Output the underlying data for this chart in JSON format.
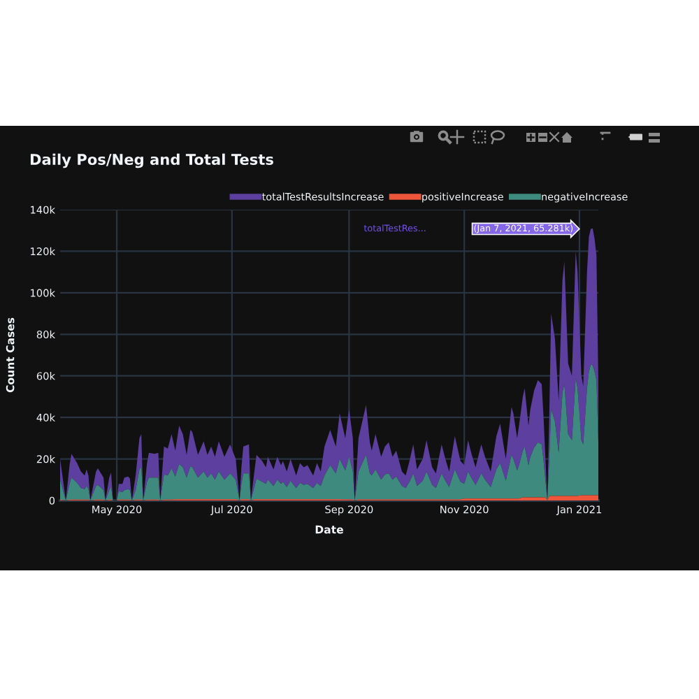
{
  "chart_data": {
    "type": "area",
    "stacked": true,
    "title": "Daily Pos/Neg and Total Tests",
    "xlabel": "Date",
    "ylabel": "Count Cases",
    "x": [
      "2020-04-01",
      "2020-04-04",
      "2020-04-06",
      "2020-04-07",
      "2020-04-10",
      "2020-04-12",
      "2020-04-14",
      "2020-04-15",
      "2020-04-16",
      "2020-04-17",
      "2020-04-20",
      "2020-04-21",
      "2020-04-24",
      "2020-04-25",
      "2020-04-27",
      "2020-04-28",
      "2020-04-29",
      "2020-05-01",
      "2020-05-02",
      "2020-05-04",
      "2020-05-05",
      "2020-05-07",
      "2020-05-08",
      "2020-05-09",
      "2020-05-11",
      "2020-05-13",
      "2020-05-14",
      "2020-05-15",
      "2020-05-17",
      "2020-05-18",
      "2020-05-21",
      "2020-05-23",
      "2020-05-24",
      "2020-05-26",
      "2020-05-28",
      "2020-05-30",
      "2020-06-01",
      "2020-06-03",
      "2020-06-05",
      "2020-06-07",
      "2020-06-09",
      "2020-06-10",
      "2020-06-13",
      "2020-06-16",
      "2020-06-18",
      "2020-06-20",
      "2020-06-22",
      "2020-06-24",
      "2020-06-27",
      "2020-06-30",
      "2020-07-03",
      "2020-07-05",
      "2020-07-06",
      "2020-07-07",
      "2020-07-10",
      "2020-07-11",
      "2020-07-13",
      "2020-07-14",
      "2020-07-17",
      "2020-07-19",
      "2020-07-20",
      "2020-07-23",
      "2020-07-25",
      "2020-07-27",
      "2020-07-28",
      "2020-07-30",
      "2020-08-01",
      "2020-08-04",
      "2020-08-06",
      "2020-08-08",
      "2020-08-10",
      "2020-08-13",
      "2020-08-15",
      "2020-08-17",
      "2020-08-19",
      "2020-08-22",
      "2020-08-25",
      "2020-08-27",
      "2020-08-30",
      "2020-09-01",
      "2020-09-03",
      "2020-09-04",
      "2020-09-06",
      "2020-09-10",
      "2020-09-12",
      "2020-09-13",
      "2020-09-15",
      "2020-09-18",
      "2020-09-20",
      "2020-09-22",
      "2020-09-24",
      "2020-09-26",
      "2020-09-29",
      "2020-10-01",
      "2020-10-03",
      "2020-10-05",
      "2020-10-07",
      "2020-10-10",
      "2020-10-12",
      "2020-10-15",
      "2020-10-17",
      "2020-10-20",
      "2020-10-22",
      "2020-10-24",
      "2020-10-27",
      "2020-10-30",
      "2020-11-01",
      "2020-11-03",
      "2020-11-05",
      "2020-11-07",
      "2020-11-10",
      "2020-11-12",
      "2020-11-15",
      "2020-11-18",
      "2020-11-20",
      "2020-11-23",
      "2020-11-26",
      "2020-11-27",
      "2020-11-29",
      "2020-11-30",
      "2020-12-02",
      "2020-12-03",
      "2020-12-05",
      "2020-12-06",
      "2020-12-08",
      "2020-12-10",
      "2020-12-12",
      "2020-12-13",
      "2020-12-14",
      "2020-12-15",
      "2020-12-16",
      "2020-12-17",
      "2020-12-19",
      "2020-12-21",
      "2020-12-23",
      "2020-12-24",
      "2020-12-26",
      "2020-12-28",
      "2020-12-30",
      "2020-12-31",
      "2021-01-02",
      "2021-01-03",
      "2021-01-05",
      "2021-01-06",
      "2021-01-07",
      "2021-01-08",
      "2021-01-09",
      "2021-01-10",
      "2021-01-11"
    ],
    "series": [
      {
        "name": "positiveIncrease",
        "color": "#ef553b",
        "values": [
          400,
          0,
          400,
          400,
          400,
          400,
          400,
          400,
          400,
          0,
          400,
          400,
          400,
          0,
          400,
          400,
          0,
          0,
          400,
          400,
          400,
          400,
          400,
          0,
          400,
          400,
          400,
          0,
          400,
          400,
          400,
          400,
          0,
          400,
          400,
          400,
          600,
          600,
          600,
          600,
          600,
          600,
          600,
          600,
          600,
          600,
          600,
          600,
          600,
          600,
          600,
          0,
          600,
          600,
          600,
          0,
          600,
          600,
          600,
          600,
          600,
          600,
          600,
          600,
          600,
          600,
          600,
          600,
          600,
          600,
          600,
          600,
          600,
          600,
          600,
          600,
          600,
          600,
          500,
          500,
          500,
          0,
          500,
          500,
          500,
          500,
          500,
          500,
          500,
          500,
          500,
          500,
          500,
          500,
          500,
          500,
          500,
          500,
          500,
          500,
          500,
          500,
          500,
          500,
          500,
          500,
          900,
          900,
          900,
          900,
          900,
          900,
          900,
          900,
          900,
          900,
          900,
          900,
          900,
          900,
          1500,
          1500,
          1500,
          1500,
          1500,
          1500,
          1500,
          1500,
          1500,
          0,
          2200,
          2200,
          2200,
          2200,
          2200,
          2200,
          2200,
          2200,
          2200,
          2200,
          2500,
          2500,
          2500,
          2500,
          2500,
          2500,
          2500,
          2500,
          2500
        ]
      },
      {
        "name": "negativeIncrease",
        "color": "#3f8a7e",
        "values": [
          9600,
          0,
          7600,
          10600,
          8100,
          5600,
          5100,
          6600,
          5100,
          0,
          6600,
          7100,
          4600,
          0,
          4600,
          6100,
          0,
          0,
          4100,
          3600,
          4600,
          5100,
          4600,
          0,
          4600,
          14600,
          15600,
          0,
          8600,
          10600,
          10600,
          10600,
          0,
          12100,
          11600,
          15100,
          10900,
          16900,
          15400,
          10400,
          15900,
          15400,
          10400,
          13400,
          10400,
          12400,
          9400,
          13400,
          9400,
          12400,
          9400,
          0,
          7400,
          12400,
          12400,
          0,
          6400,
          9900,
          8400,
          7400,
          9400,
          6400,
          9400,
          7400,
          8400,
          5900,
          8900,
          5400,
          7900,
          6900,
          7400,
          5400,
          7900,
          6400,
          11400,
          16400,
          12400,
          19400,
          14000,
          20500,
          13500,
          0,
          13500,
          21500,
          12500,
          11500,
          14500,
          9500,
          12000,
          12500,
          9500,
          11000,
          6500,
          5500,
          8500,
          12500,
          6500,
          9000,
          13500,
          7000,
          5500,
          12500,
          9000,
          6000,
          14500,
          8500,
          7100,
          13100,
          9600,
          6600,
          12100,
          9100,
          5600,
          14100,
          17100,
          8600,
          21100,
          19100,
          13600,
          16100,
          22500,
          24500,
          15500,
          19500,
          24000,
          26500,
          25500,
          17500,
          8000,
          0,
          17800,
          41800,
          35800,
          20800,
          49800,
          53800,
          29800,
          26800,
          56800,
          51800,
          26500,
          24500,
          51500,
          59500,
          63000,
          62500,
          59500,
          55500,
          25500
        ]
      },
      {
        "name": "totalTestResultsIncrease",
        "color": "#5c3f9e",
        "values": [
          10000,
          0,
          9000,
          11500,
          9500,
          8000,
          6500,
          8000,
          6500,
          0,
          7000,
          8000,
          6000,
          0,
          6000,
          7000,
          0,
          0,
          3500,
          4000,
          6000,
          6000,
          5500,
          0,
          7000,
          15000,
          16000,
          0,
          9000,
          12000,
          11500,
          12000,
          0,
          13500,
          13000,
          16500,
          12500,
          18500,
          16000,
          11000,
          17500,
          17000,
          11000,
          14500,
          11000,
          13000,
          11000,
          14500,
          11000,
          14000,
          10000,
          0,
          8000,
          13000,
          14000,
          0,
          8000,
          11500,
          10000,
          8000,
          11000,
          8000,
          11000,
          9000,
          10000,
          7500,
          10500,
          6000,
          9500,
          8500,
          9000,
          6000,
          9500,
          7000,
          14000,
          17000,
          13000,
          22000,
          15500,
          23000,
          16000,
          0,
          16000,
          24000,
          15000,
          12000,
          17000,
          11000,
          13500,
          15000,
          11000,
          12500,
          7000,
          6000,
          10000,
          14000,
          8000,
          10500,
          15000,
          8500,
          7000,
          14000,
          10500,
          7500,
          16000,
          10000,
          9000,
          15000,
          11500,
          8500,
          14000,
          11000,
          7500,
          16000,
          19000,
          10500,
          23000,
          22000,
          15500,
          19000,
          26000,
          28000,
          19000,
          23000,
          27500,
          30000,
          29000,
          21000,
          10500,
          0,
          20000,
          46000,
          40000,
          25000,
          54000,
          59000,
          34000,
          31000,
          61000,
          56000,
          31000,
          28000,
          56000,
          65000,
          65281,
          66000,
          64000,
          60000,
          29000
        ]
      }
    ],
    "xlim": [
      "2020-04-01",
      "2021-01-11"
    ],
    "xticks": [
      {
        "value": "2020-05-01",
        "label": "May 2020"
      },
      {
        "value": "2020-07-01",
        "label": "Jul 2020"
      },
      {
        "value": "2020-09-01",
        "label": "Sep 2020"
      },
      {
        "value": "2020-11-01",
        "label": "Nov 2020"
      },
      {
        "value": "2021-01-01",
        "label": "Jan 2021"
      }
    ],
    "ylim": [
      0,
      140000
    ],
    "yticks": [
      0,
      {
        "value": 20000,
        "label": "20k"
      },
      {
        "value": 40000,
        "label": "40k"
      },
      {
        "value": 60000,
        "label": "60k"
      },
      {
        "value": 80000,
        "label": "80k"
      },
      {
        "value": 100000,
        "label": "100k"
      },
      {
        "value": 120000,
        "label": "120k"
      },
      {
        "value": 140000,
        "label": "140k"
      }
    ],
    "grid": true,
    "legend": "top right",
    "annotations": [
      "totalTestRes...",
      {
        "text": "(Jan 7, 2021, 65.281k)",
        "x": "2021-01-07",
        "y": 130781
      }
    ]
  }
}
